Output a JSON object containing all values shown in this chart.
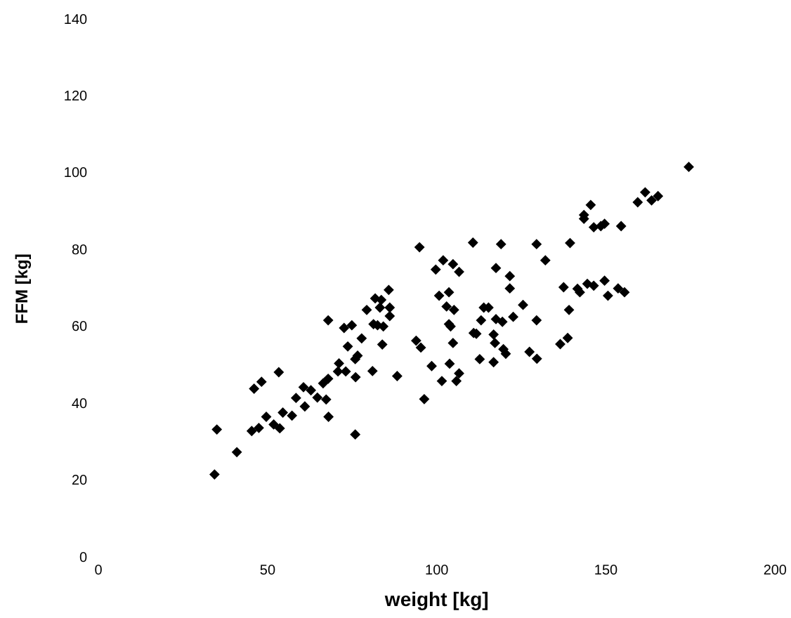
{
  "chart_data": {
    "type": "scatter",
    "xlabel": "weight [kg]",
    "ylabel": "FFM [kg]",
    "xlim": [
      0,
      200
    ],
    "xticks": [
      0,
      50,
      100,
      150,
      200
    ],
    "ylim": [
      0,
      140
    ],
    "yticks": [
      0,
      20,
      40,
      60,
      80,
      100,
      120,
      140
    ],
    "grid": false,
    "legend": false,
    "marker": "diamond",
    "series": [
      {
        "color": "#000000",
        "x": [
          34.3,
          35.0,
          40.9,
          46,
          48.2,
          45.3,
          47.4,
          49.6,
          51.8,
          53.6,
          53.3,
          54.5,
          57.2,
          58.4,
          61,
          60.6,
          62.8,
          64.7,
          66.4,
          67.3,
          68,
          67.9,
          70.8,
          73.1,
          71.1,
          73.7,
          75.9,
          76.6,
          77.8,
          75.9,
          76,
          81,
          81.3,
          82.5,
          83.9,
          84.2,
          86.1,
          86.1,
          79.3,
          83.2,
          83.6,
          85.8,
          81.8,
          88.3,
          74.9,
          72.6,
          67.9,
          93.9,
          95.3,
          94.9,
          96.3,
          98.5,
          99.7,
          100.7,
          101.5,
          101.9,
          102.9,
          103.6,
          103.6,
          104.1,
          103.8,
          104.8,
          105.1,
          105.8,
          106.6,
          106.6,
          104.8,
          110.7,
          110.9,
          111.7,
          112.7,
          113.1,
          113.9,
          115.3,
          116.8,
          116.8,
          117.2,
          117.5,
          117.5,
          119,
          119.4,
          119.7,
          120.4,
          121.6,
          121.6,
          122.6,
          125.5,
          127.4,
          129.5,
          129.6,
          129.5,
          132.1,
          136.5,
          137.5,
          138.7,
          139.1,
          139.4,
          141.6,
          142.3,
          143.5,
          143.5,
          144.5,
          145.5,
          146.4,
          146.4,
          148.5,
          149.6,
          149.6,
          150.6,
          153.6,
          154.5,
          155.5,
          159.4,
          161.6,
          163.5,
          165.4,
          174.5
        ],
        "values": [
          21.7,
          33.4,
          27.5,
          44,
          45.8,
          33,
          33.8,
          36.7,
          34.7,
          33.7,
          48.3,
          37.8,
          37,
          41.6,
          39.4,
          44.4,
          43.6,
          41.7,
          45.4,
          41.2,
          36.7,
          46.6,
          48.5,
          48.5,
          50.6,
          55,
          51.7,
          52.6,
          57.1,
          32.1,
          47,
          48.6,
          60.8,
          60.5,
          55.5,
          60.2,
          62.9,
          65.1,
          64.5,
          65.1,
          67.1,
          69.7,
          67.5,
          47.3,
          60.5,
          59.8,
          61.8,
          56.5,
          54.7,
          80.8,
          41.3,
          49.9,
          75,
          68.2,
          46,
          77.4,
          65.4,
          69.1,
          60.8,
          60.2,
          50.5,
          76.4,
          64.5,
          46,
          48,
          74.4,
          55.9,
          82,
          58.5,
          58.3,
          51.7,
          61.8,
          65.1,
          65.1,
          58.1,
          50.9,
          55.9,
          75.4,
          62.1,
          81.6,
          61.4,
          54.3,
          53.1,
          73.3,
          70.1,
          62.7,
          65.8,
          53.6,
          81.6,
          51.8,
          61.8,
          77.4,
          55.6,
          70.4,
          57.2,
          64.5,
          81.9,
          70,
          69.1,
          89.2,
          88.2,
          71.3,
          91.8,
          70.8,
          86,
          86.3,
          86.9,
          72.1,
          68.2,
          70.1,
          86.3,
          69.1,
          92.5,
          95.1,
          93,
          94.1,
          101.7
        ]
      }
    ]
  }
}
